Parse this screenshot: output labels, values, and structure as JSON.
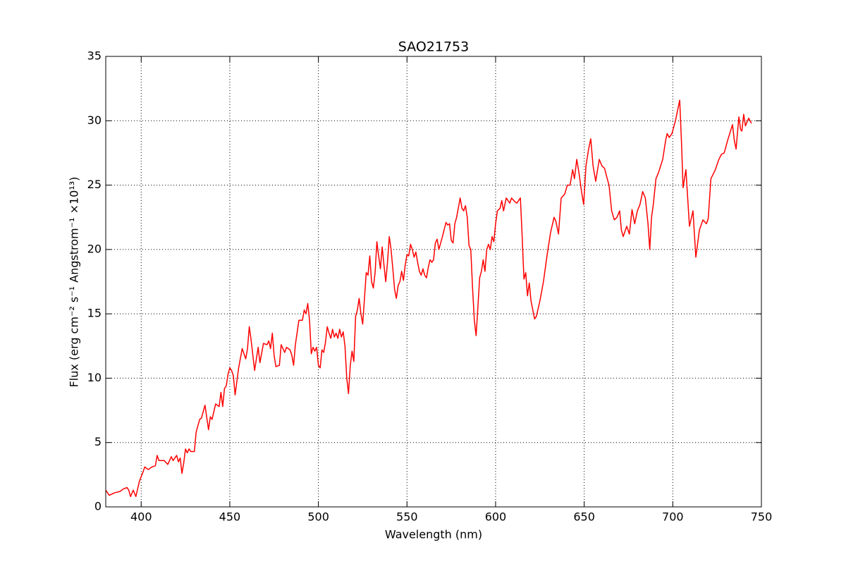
{
  "chart_data": {
    "type": "line",
    "title": "SAO21753",
    "xlabel": "Wavelength (nm)",
    "ylabel": "Flux  (erg cm⁻²  s⁻¹  Angstrom⁻¹  ×10¹³)",
    "color": "#ff0000",
    "grid": true,
    "xlim": [
      380,
      750
    ],
    "xticks": [
      400,
      450,
      500,
      550,
      600,
      650,
      700,
      750
    ],
    "ylim": [
      0,
      35
    ],
    "yticks": [
      0,
      5,
      10,
      15,
      20,
      25,
      30,
      35
    ],
    "x": [
      380,
      382,
      385,
      388,
      390,
      392,
      393,
      394,
      395.5,
      397,
      399,
      401,
      402,
      404,
      406,
      408,
      409,
      410,
      413,
      415,
      417,
      418,
      420,
      421,
      422,
      423,
      424,
      425,
      426,
      427,
      428,
      430,
      431,
      433,
      434,
      436,
      438,
      439,
      440,
      442,
      444,
      445,
      446,
      447,
      448,
      449,
      450,
      451,
      452,
      453,
      455,
      457,
      459,
      460,
      461,
      462,
      463,
      464,
      466,
      467,
      469,
      471,
      472,
      473,
      474,
      475,
      476,
      478,
      479,
      481,
      482,
      484,
      485,
      486,
      487,
      489,
      491,
      492,
      493,
      494,
      495,
      496,
      497,
      498,
      499,
      500,
      501,
      502,
      503,
      504,
      505,
      506,
      507,
      508,
      509,
      510,
      511,
      512,
      513,
      514,
      515,
      516,
      517,
      518,
      519,
      520,
      521,
      522,
      523,
      524,
      525,
      526,
      527,
      528,
      529,
      530,
      531,
      532,
      533,
      534,
      535,
      536,
      537,
      538,
      539,
      540,
      541,
      542,
      543,
      544,
      545,
      546,
      547,
      548,
      549,
      550,
      551,
      552,
      553,
      554,
      555,
      556,
      557,
      558,
      559,
      560,
      561,
      562,
      563,
      564,
      565,
      566,
      567,
      568,
      569,
      570,
      572,
      573,
      574,
      575,
      576,
      577,
      578,
      580,
      581,
      582,
      583,
      584,
      585,
      586,
      587,
      588,
      589,
      590,
      591,
      592,
      593,
      594,
      595,
      596,
      597,
      598,
      599,
      600,
      601,
      602.5,
      603.5,
      604.5,
      606,
      608,
      609,
      611,
      612,
      614,
      615,
      616,
      617,
      618,
      619,
      620,
      622,
      623,
      625,
      627,
      629,
      631,
      633,
      634,
      635.5,
      637,
      639,
      640.5,
      642,
      643.5,
      644.5,
      645.8,
      647,
      648.5,
      649.7,
      651,
      652.5,
      653.7,
      655,
      656.5,
      658.5,
      660,
      661.5,
      663,
      664,
      665.5,
      667,
      668.5,
      670,
      671,
      672,
      674,
      675.5,
      677,
      678.5,
      680,
      681.5,
      683,
      684.5,
      686,
      687,
      688,
      689,
      690.5,
      692,
      694.3,
      696,
      696.8,
      698,
      699.5,
      701.5,
      703.9,
      705,
      705.8,
      707.4,
      709.4,
      711.4,
      713,
      715,
      717,
      719,
      720,
      721.5,
      722.6,
      724,
      726,
      727.5,
      729,
      731,
      733.7,
      734.7,
      735.7,
      737.3,
      738.3,
      739,
      740,
      741,
      741.6,
      742.8,
      744.4
    ],
    "values": [
      1.3,
      0.9,
      1.1,
      1.2,
      1.4,
      1.5,
      1.3,
      0.8,
      1.3,
      0.8,
      2.0,
      2.7,
      3.1,
      2.9,
      3.1,
      3.2,
      4.0,
      3.6,
      3.6,
      3.3,
      3.9,
      3.6,
      4.0,
      3.5,
      3.8,
      2.6,
      3.4,
      4.5,
      4.2,
      4.5,
      4.3,
      4.3,
      5.8,
      6.8,
      6.9,
      7.9,
      6.0,
      7.0,
      6.8,
      8.0,
      7.8,
      8.9,
      7.8,
      9.2,
      9.4,
      10.3,
      10.8,
      10.6,
      10.2,
      8.7,
      10.8,
      12.3,
      11.5,
      12.3,
      14.0,
      13.0,
      11.8,
      10.6,
      12.4,
      11.2,
      12.7,
      12.6,
      12.9,
      12.3,
      13.5,
      11.8,
      10.9,
      11.0,
      12.6,
      12.0,
      12.4,
      12.2,
      11.8,
      11.0,
      12.6,
      14.5,
      14.5,
      15.3,
      15.0,
      15.8,
      14.5,
      11.9,
      12.4,
      12.1,
      12.4,
      11.0,
      10.8,
      12.2,
      12.0,
      12.8,
      14.0,
      13.5,
      13.1,
      13.8,
      13.2,
      13.5,
      13.1,
      13.8,
      13.2,
      13.6,
      12.5,
      10.0,
      8.8,
      11.0,
      12.1,
      11.3,
      14.8,
      15.3,
      16.2,
      15.0,
      14.2,
      16.2,
      18.2,
      18.0,
      19.5,
      17.5,
      17.0,
      18.2,
      20.6,
      19.5,
      18.5,
      20.2,
      18.8,
      17.5,
      19.0,
      21.0,
      20.0,
      18.5,
      16.9,
      16.2,
      17.2,
      17.5,
      18.3,
      17.6,
      18.8,
      19.6,
      19.5,
      20.4,
      20.0,
      19.4,
      19.8,
      19.0,
      18.3,
      18.0,
      18.5,
      18.0,
      17.8,
      18.6,
      19.2,
      19.0,
      19.2,
      20.5,
      20.8,
      20.0,
      20.5,
      21.0,
      22.1,
      21.9,
      22.0,
      20.7,
      20.5,
      22.0,
      22.5,
      24.0,
      23.2,
      23.0,
      23.4,
      22.5,
      20.3,
      20.0,
      17.0,
      14.5,
      13.3,
      15.5,
      17.8,
      18.3,
      19.2,
      18.3,
      20.0,
      20.4,
      20.0,
      21.0,
      20.6,
      22.0,
      23.0,
      23.2,
      23.8,
      23.0,
      24.0,
      23.6,
      24.0,
      23.7,
      23.6,
      24.0,
      21.0,
      17.7,
      18.2,
      16.4,
      17.4,
      16.0,
      14.6,
      14.8,
      16.0,
      17.5,
      19.5,
      21.3,
      22.5,
      22.2,
      21.2,
      24.0,
      24.3,
      25.0,
      25.0,
      26.2,
      25.5,
      27.0,
      26.0,
      24.5,
      23.5,
      26.5,
      27.8,
      28.6,
      26.5,
      25.3,
      27.0,
      26.5,
      26.3,
      25.5,
      25.0,
      23.0,
      22.3,
      22.5,
      23.0,
      21.5,
      21.0,
      21.8,
      21.2,
      23.1,
      22.0,
      23.0,
      23.5,
      24.5,
      24.0,
      22.0,
      20.0,
      22.5,
      23.5,
      25.5,
      26.0,
      27.0,
      28.5,
      29.0,
      28.7,
      29.0,
      30.0,
      31.6,
      28.0,
      24.8,
      26.2,
      21.8,
      23.0,
      19.4,
      21.5,
      22.3,
      22.0,
      22.4,
      25.5,
      25.8,
      26.2,
      27.0,
      27.4,
      27.5,
      28.5,
      29.7,
      28.5,
      27.8,
      30.3,
      29.3,
      29.2,
      30.5,
      29.6,
      29.8,
      30.2,
      29.8
    ]
  }
}
